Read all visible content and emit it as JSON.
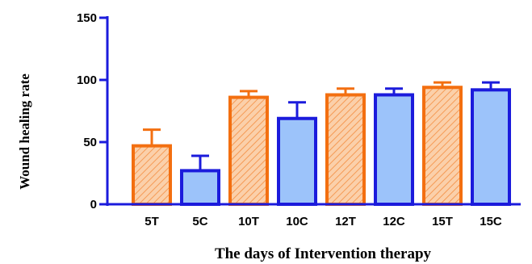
{
  "chart_data": {
    "type": "bar",
    "title": "",
    "xlabel": "The days of Intervention therapy",
    "ylabel": "Wound healing rate",
    "ylim": [
      0,
      150
    ],
    "yticks": [
      0,
      50,
      100,
      150
    ],
    "grid": false,
    "categories": [
      "5T",
      "5C",
      "10T",
      "10C",
      "12T",
      "12C",
      "15T",
      "15C"
    ],
    "values": [
      47,
      27,
      86,
      69,
      88,
      88,
      94,
      92
    ],
    "errors": [
      13,
      12,
      5,
      13,
      5,
      5,
      4,
      6
    ],
    "groups": [
      "T",
      "C",
      "T",
      "C",
      "T",
      "C",
      "T",
      "C"
    ],
    "styles": {
      "T": {
        "fill": "#fbd0aa",
        "edge": "#f36f10",
        "pattern": "diagonal-hatch"
      },
      "C": {
        "fill": "#9cc3fa",
        "edge": "#1b1bdc",
        "pattern": "solid"
      }
    },
    "axis_color": "#1b1bdc"
  }
}
